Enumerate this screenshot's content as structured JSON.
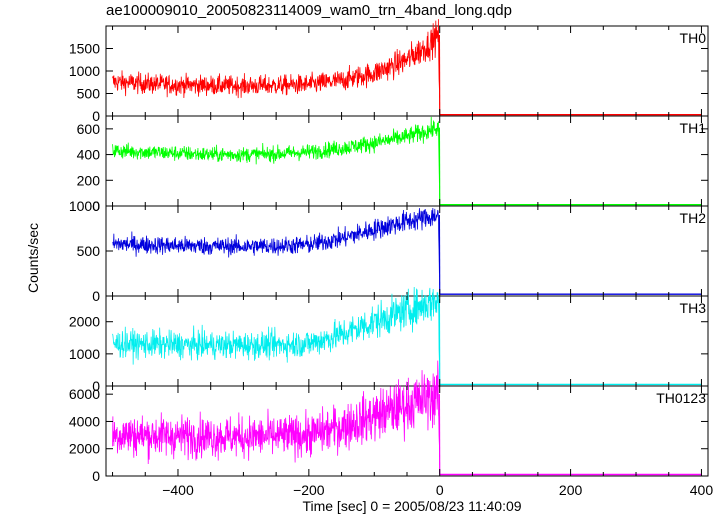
{
  "chart_data": {
    "type": "line",
    "title": "ae100009010_20050823114009_wam0_trn_4band_long.qdp",
    "xlabel": "Time [sec] 0 = 2005/08/23 11:40:09",
    "ylabel": "Counts/sec",
    "xlim": [
      -510,
      410
    ],
    "xticks": [
      -400,
      -200,
      0,
      200,
      400
    ],
    "grid": false,
    "panels": [
      {
        "name": "TH0",
        "color": "#ff0000",
        "ylim": [
          0,
          2000
        ],
        "yticks": [
          0,
          500,
          1000,
          1500
        ],
        "x": [
          -500,
          -450,
          -400,
          -350,
          -300,
          -250,
          -200,
          -150,
          -100,
          -50,
          -20,
          -2,
          0,
          50,
          100,
          200,
          300,
          400
        ],
        "y": [
          760,
          720,
          690,
          680,
          670,
          680,
          700,
          790,
          950,
          1250,
          1550,
          1800,
          40,
          30,
          30,
          30,
          30,
          30
        ]
      },
      {
        "name": "TH1",
        "color": "#00ff00",
        "ylim": [
          0,
          700
        ],
        "yticks": [
          0,
          200,
          400,
          600
        ],
        "x": [
          -500,
          -450,
          -400,
          -350,
          -300,
          -250,
          -200,
          -150,
          -100,
          -50,
          -20,
          -2,
          0,
          50,
          100,
          200,
          300,
          400
        ],
        "y": [
          430,
          420,
          410,
          400,
          400,
          405,
          420,
          450,
          490,
          540,
          580,
          610,
          10,
          10,
          10,
          10,
          10,
          10
        ]
      },
      {
        "name": "TH2",
        "color": "#0000dd",
        "ylim": [
          0,
          1000
        ],
        "yticks": [
          0,
          500,
          1000
        ],
        "x": [
          -500,
          -450,
          -400,
          -350,
          -300,
          -250,
          -200,
          -150,
          -100,
          -50,
          -20,
          -2,
          0,
          50,
          100,
          200,
          300,
          400
        ],
        "y": [
          580,
          570,
          560,
          555,
          550,
          555,
          570,
          640,
          740,
          830,
          870,
          900,
          20,
          20,
          20,
          20,
          20,
          20
        ]
      },
      {
        "name": "TH3",
        "color": "#00eeee",
        "ylim": [
          0,
          2800
        ],
        "yticks": [
          0,
          1000,
          2000
        ],
        "x": [
          -500,
          -450,
          -400,
          -350,
          -300,
          -250,
          -200,
          -150,
          -100,
          -50,
          -20,
          -2,
          0,
          50,
          100,
          200,
          300,
          400
        ],
        "y": [
          1320,
          1300,
          1280,
          1270,
          1270,
          1280,
          1320,
          1600,
          2000,
          2350,
          2550,
          2700,
          50,
          50,
          50,
          50,
          50,
          50
        ]
      },
      {
        "name": "TH0123",
        "color": "#ff00ff",
        "ylim": [
          0,
          6600
        ],
        "yticks": [
          0,
          2000,
          4000,
          6000
        ],
        "x": [
          -500,
          -450,
          -400,
          -350,
          -300,
          -250,
          -200,
          -150,
          -100,
          -50,
          -20,
          -2,
          0,
          50,
          100,
          200,
          300,
          400
        ],
        "y": [
          3050,
          2980,
          2930,
          2900,
          2880,
          2900,
          3000,
          3600,
          4400,
          5200,
          5700,
          6000,
          120,
          110,
          110,
          110,
          110,
          110
        ]
      }
    ]
  }
}
